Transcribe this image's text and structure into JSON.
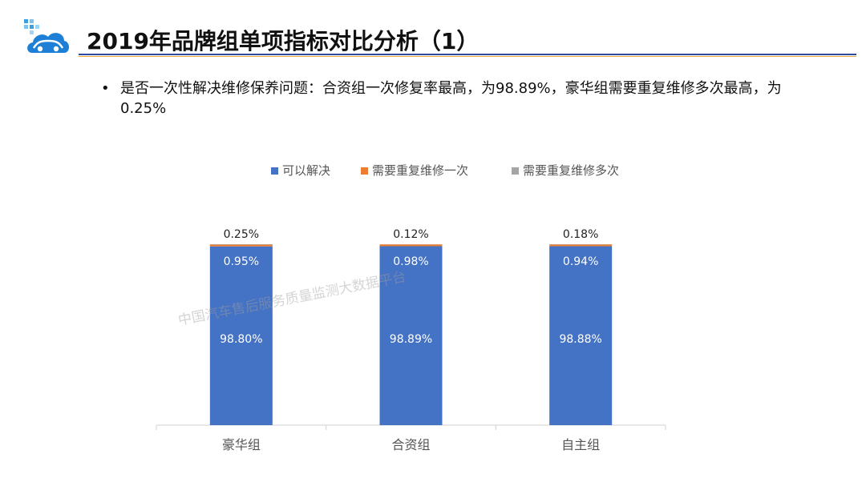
{
  "header": {
    "title": "2019年品牌组单项指标对比分析（1）",
    "logo_icon": "car-cloud-logo-icon"
  },
  "bullet": {
    "marker": "•",
    "text": "是否一次性解决维修保养问题：合资组一次修复率最高，为98.89%，豪华组需要重复维修多次最高，为0.25%"
  },
  "watermark": "中国汽车售后服务质量监测大数据平台",
  "chart_data": {
    "type": "bar",
    "stacked": true,
    "categories": [
      "豪华组",
      "合资组",
      "自主组"
    ],
    "series": [
      {
        "name": "可以解决",
        "color": "#4472c4",
        "values": [
          98.8,
          98.89,
          98.88
        ],
        "labels": [
          "98.80%",
          "98.89%",
          "98.88%"
        ]
      },
      {
        "name": "需要重复维修一次",
        "color": "#ed7d31",
        "values": [
          0.95,
          0.98,
          0.94
        ],
        "labels": [
          "0.95%",
          "0.98%",
          "0.94%"
        ]
      },
      {
        "name": "需要重复维修多次",
        "color": "#a5a5a5",
        "values": [
          0.25,
          0.12,
          0.18
        ],
        "labels": [
          "0.25%",
          "0.12%",
          "0.18%"
        ]
      }
    ],
    "ylim": [
      0,
      100
    ],
    "legend_position": "top",
    "grid": false
  }
}
